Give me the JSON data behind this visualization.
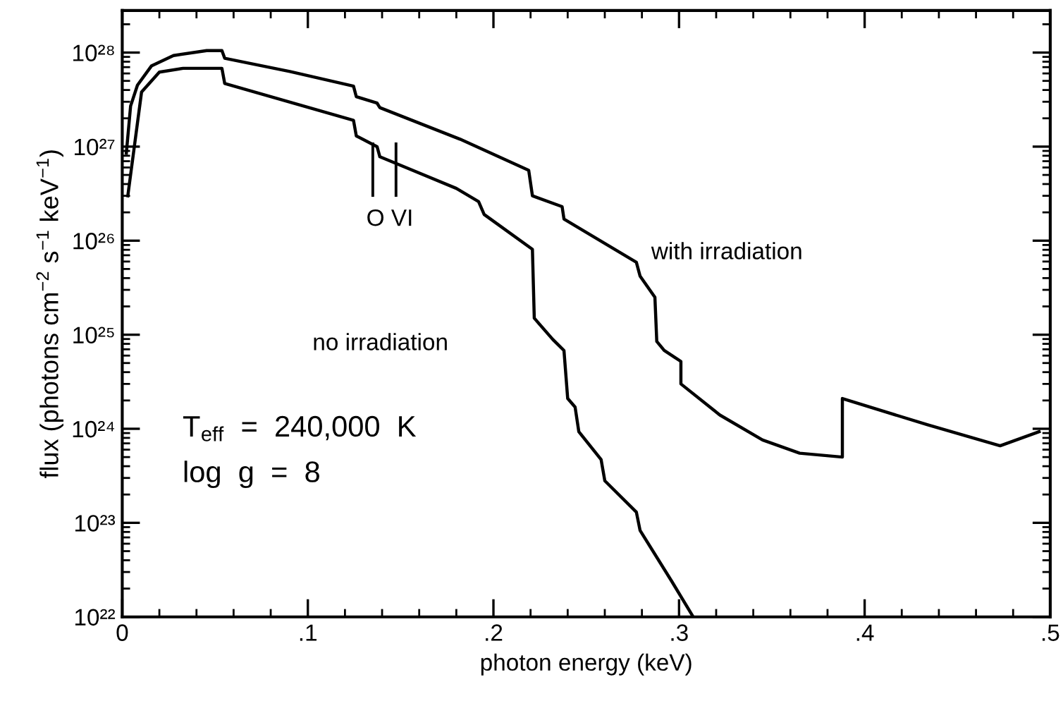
{
  "chart_data": {
    "type": "line",
    "xlabel": "photon energy (keV)",
    "ylabel": "flux (photons cm$^{−2}$ s$^{−1}$ keV$^{−1}$)",
    "log": "y",
    "grid": false,
    "legend": false,
    "marker": "none",
    "line_style": "solid",
    "xlim": [
      0,
      0.5
    ],
    "ylim": [
      1e+22,
      2.8e+28
    ],
    "xticks": [
      {
        "value": 0,
        "label": "0"
      },
      {
        "value": 0.1,
        "label": ".1"
      },
      {
        "value": 0.2,
        "label": ".2"
      },
      {
        "value": 0.3,
        "label": ".3"
      },
      {
        "value": 0.4,
        "label": ".4"
      },
      {
        "value": 0.5,
        "label": ".5"
      }
    ],
    "yticks": [
      {
        "value": 1e+22,
        "label": "10²²"
      },
      {
        "value": 1e+23,
        "label": "10²³"
      },
      {
        "value": 1e+24,
        "label": "10²⁴"
      },
      {
        "value": 1e+25,
        "label": "10²⁵"
      },
      {
        "value": 1e+26,
        "label": "10²⁶"
      },
      {
        "value": 1e+27,
        "label": "10²⁷"
      },
      {
        "value": 1e+28,
        "label": "10²⁸"
      }
    ],
    "series": [
      {
        "color": "#000000",
        "x": [
          0.0022,
          0.0045,
          0.0082,
          0.0157,
          0.0276,
          0.0455,
          0.0537,
          0.0552,
          0.0903,
          0.1246,
          0.1261,
          0.1373,
          0.1388,
          0.182,
          0.219,
          0.221,
          0.237,
          0.238,
          0.277,
          0.279,
          0.287,
          0.288,
          0.292,
          0.301,
          0.301,
          0.322,
          0.345,
          0.365,
          0.388,
          0.388,
          0.434,
          0.473,
          0.494
        ],
        "values": [
          8.5e+26,
          2.7e+27,
          4.5e+27,
          7.2e+27,
          9.3e+27,
          1.05e+28,
          1.05e+28,
          8.7e+27,
          6.3e+27,
          4.4e+27,
          3.4e+27,
          2.9e+27,
          2.6e+27,
          1.2e+27,
          5.6e+26,
          3e+26,
          2.3e+26,
          1.7e+26,
          5.9e+25,
          4.2e+25,
          2.5e+25,
          8.5e+24,
          6.8e+24,
          5.2e+24,
          3e+24,
          1.4e+24,
          7.6e+23,
          5.5e+23,
          5e+23,
          2.1e+24,
          1.1e+24,
          6.6e+23,
          9.3e+23
        ]
      },
      {
        "color": "#000000",
        "x": [
          0.003,
          0.0104,
          0.02,
          0.0328,
          0.0537,
          0.0552,
          0.1246,
          0.1261,
          0.1373,
          0.1388,
          0.18,
          0.192,
          0.195,
          0.221,
          0.222,
          0.232,
          0.238,
          0.24,
          0.244,
          0.246,
          0.258,
          0.26,
          0.277,
          0.279,
          0.296,
          0.307
        ],
        "values": [
          3e+26,
          3.8e+27,
          6.2e+27,
          6.8e+27,
          6.8e+27,
          4.7e+27,
          1.9e+27,
          1.3e+27,
          1e+27,
          7.8e+26,
          3.6e+26,
          2.6e+26,
          1.9e+26,
          8.1e+25,
          1.5e+25,
          8.9e+24,
          6.8e+24,
          2.1e+24,
          1.7e+24,
          9.3e+23,
          4.7e+23,
          2.8e+23,
          1.3e+23,
          8.3e+22,
          2.4e+22,
          1.05e+22
        ]
      }
    ],
    "annotations": [
      "O VI",
      "with irradiation",
      "no irradiation",
      "T$_{eff}$  =  240,000  K",
      "log  g  =  8"
    ]
  }
}
